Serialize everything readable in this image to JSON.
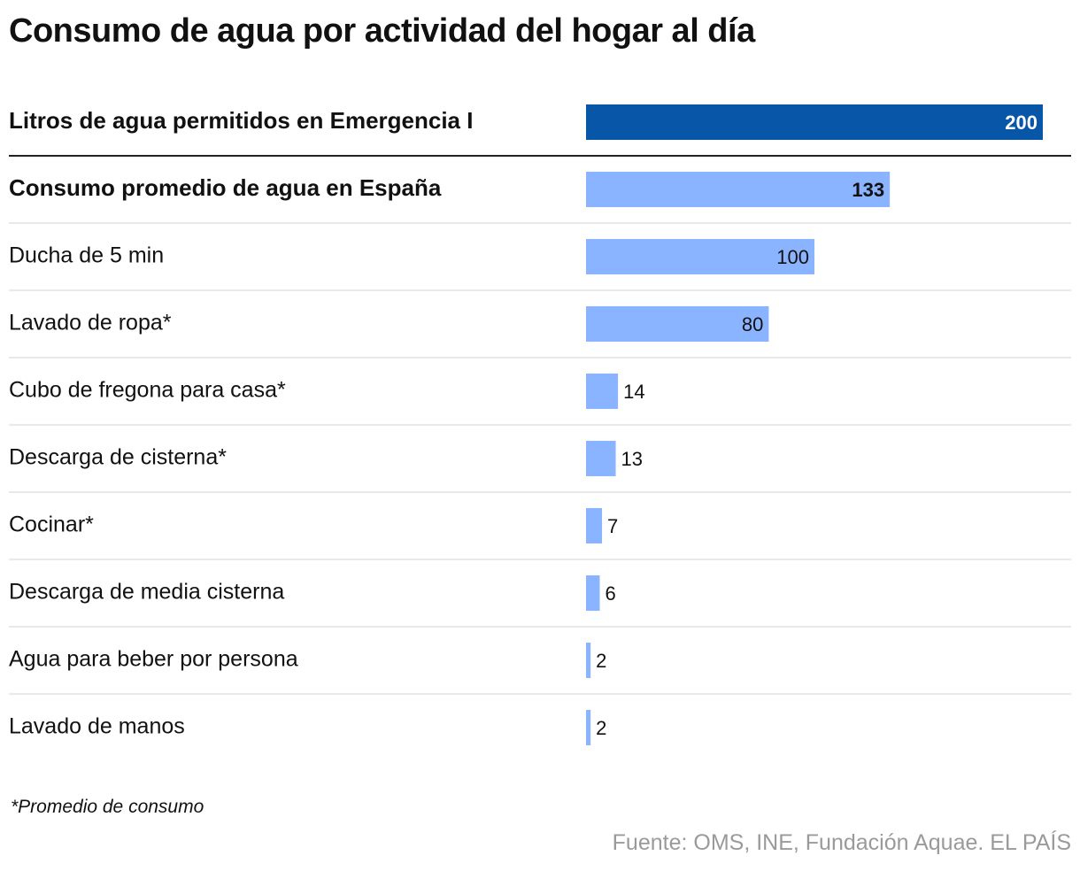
{
  "title": "Consumo de agua por actividad del hogar al día",
  "footnote": "*Promedio de consumo",
  "source": "Fuente: OMS, INE, Fundación Aquae. EL PAÍS",
  "colors": {
    "emergency_bar": "#0756a8",
    "bar": "#8ab4ff",
    "divider": "#222222",
    "row_line": "#e2e2e2"
  },
  "chart_data": {
    "type": "bar",
    "orientation": "horizontal",
    "categories": [
      "Litros de agua permitidos en Emergencia I",
      "Consumo promedio de agua en España",
      "Ducha de 5 min",
      "Lavado de ropa*",
      "Cubo de fregona para casa*",
      "Descarga de cisterna*",
      "Cocinar*",
      "Descarga de media cisterna",
      "Agua para beber por persona",
      "Lavado de manos"
    ],
    "values": [
      200,
      133,
      100,
      80,
      14,
      13,
      7,
      6,
      2,
      2
    ],
    "bold_rows": [
      0,
      1
    ],
    "highlight_rows": [
      0
    ],
    "xlim": [
      0,
      200
    ]
  }
}
